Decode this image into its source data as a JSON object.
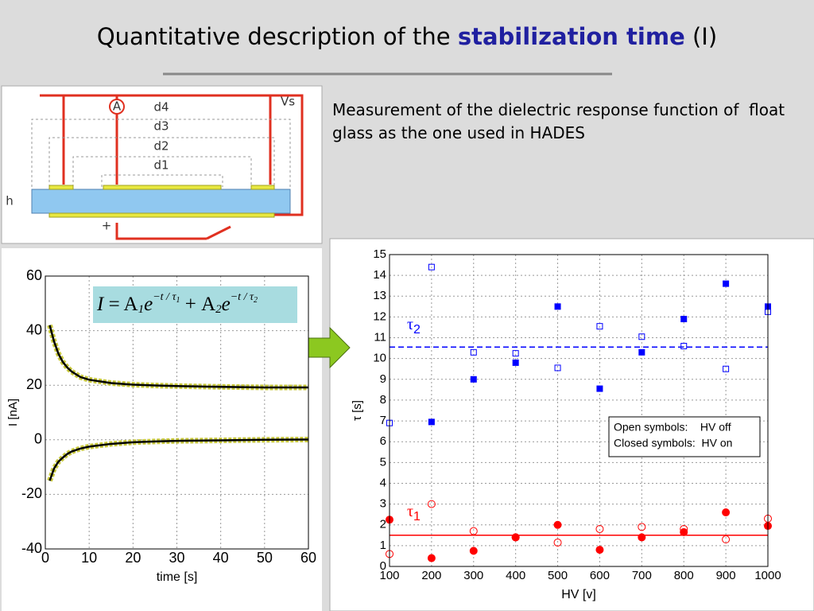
{
  "header": {
    "title_parts": [
      "Quantitative description of the ",
      "stabilization time",
      " (I)"
    ]
  },
  "description": "Measurement of the dielectric response function of  float glass as the one used in HADES",
  "diagram": {
    "labels": {
      "ammeter": "A",
      "d4": "d4",
      "d3": "d3",
      "d2": "d2",
      "d1": "d1",
      "voltage": "Vs",
      "thickness": "h",
      "plus": "+"
    }
  },
  "chart_data": [
    {
      "type": "line",
      "xlabel": "time [s]",
      "ylabel": "I [nA]",
      "equation": [
        "I",
        " = A",
        "1",
        "e",
        "−t / τ",
        "1",
        " + A",
        "2",
        "e",
        "−t / τ",
        "2"
      ],
      "x": [
        1,
        2,
        3,
        4,
        5,
        6,
        8,
        10,
        15,
        20,
        25,
        30,
        40,
        50,
        60
      ],
      "series": [
        {
          "color": "#000000",
          "marker_color": "#c8c83c",
          "values": [
            42,
            36,
            31.5,
            28.5,
            26.5,
            25,
            23,
            22,
            20.8,
            20.2,
            19.9,
            19.7,
            19.4,
            19.2,
            19.2
          ]
        },
        {
          "color": "#000000",
          "marker_color": "#c8c83c",
          "values": [
            -15,
            -10.5,
            -8,
            -6.5,
            -5.2,
            -4.3,
            -3.2,
            -2.5,
            -1.5,
            -0.9,
            -0.6,
            -0.4,
            -0.2,
            0,
            0.1
          ]
        }
      ],
      "xlim": [
        0,
        60
      ],
      "xticks": [
        0,
        10,
        20,
        30,
        40,
        50,
        60
      ],
      "ylim": [
        -40,
        60
      ],
      "yticks": [
        -40,
        -20,
        0,
        20,
        40,
        60
      ],
      "grid": true
    },
    {
      "type": "scatter",
      "xlabel": "HV [v]",
      "ylabel": "τ [s]",
      "x": [
        100,
        200,
        300,
        400,
        500,
        600,
        700,
        800,
        900,
        1000
      ],
      "series": [
        {
          "color": "#0000ff",
          "marker": "open-square",
          "values": [
            6.9,
            14.4,
            10.3,
            10.25,
            9.55,
            11.55,
            11.05,
            10.6,
            9.5,
            12.25
          ]
        },
        {
          "color": "#0000ff",
          "marker": "closed-square",
          "values": [
            null,
            6.95,
            9.0,
            9.8,
            12.5,
            8.55,
            10.3,
            11.9,
            13.6,
            12.5
          ]
        },
        {
          "color": "#ff0000",
          "marker": "open-circle",
          "values": [
            0.6,
            3.0,
            1.7,
            1.4,
            1.15,
            1.8,
            1.9,
            1.8,
            1.3,
            2.3
          ]
        },
        {
          "color": "#ff0000",
          "marker": "closed-circle",
          "values": [
            2.25,
            0.4,
            0.75,
            1.4,
            2.0,
            0.8,
            1.4,
            1.65,
            2.6,
            1.95
          ]
        }
      ],
      "reference_lines": [
        {
          "value": 10.55,
          "color": "#0000ff",
          "style": "dashed"
        },
        {
          "value": 1.5,
          "color": "#ff0000",
          "style": "solid"
        }
      ],
      "annotations": [
        {
          "symbol": "τ",
          "sub": "2",
          "color": "#0000ff",
          "at": [
            100,
            11.6
          ]
        },
        {
          "symbol": "τ",
          "sub": "1",
          "color": "#ff0000",
          "at": [
            100,
            2.6
          ]
        }
      ],
      "legend": [
        "Open symbols:    HV off",
        "Closed symbols:  HV on"
      ],
      "xlim": [
        100,
        1000
      ],
      "xticks": [
        100,
        200,
        300,
        400,
        500,
        600,
        700,
        800,
        900,
        1000
      ],
      "ylim": [
        0,
        15
      ],
      "yticks": [
        0,
        1,
        2,
        3,
        4,
        5,
        6,
        7,
        8,
        9,
        10,
        11,
        12,
        13,
        14,
        15
      ],
      "grid": true
    }
  ]
}
